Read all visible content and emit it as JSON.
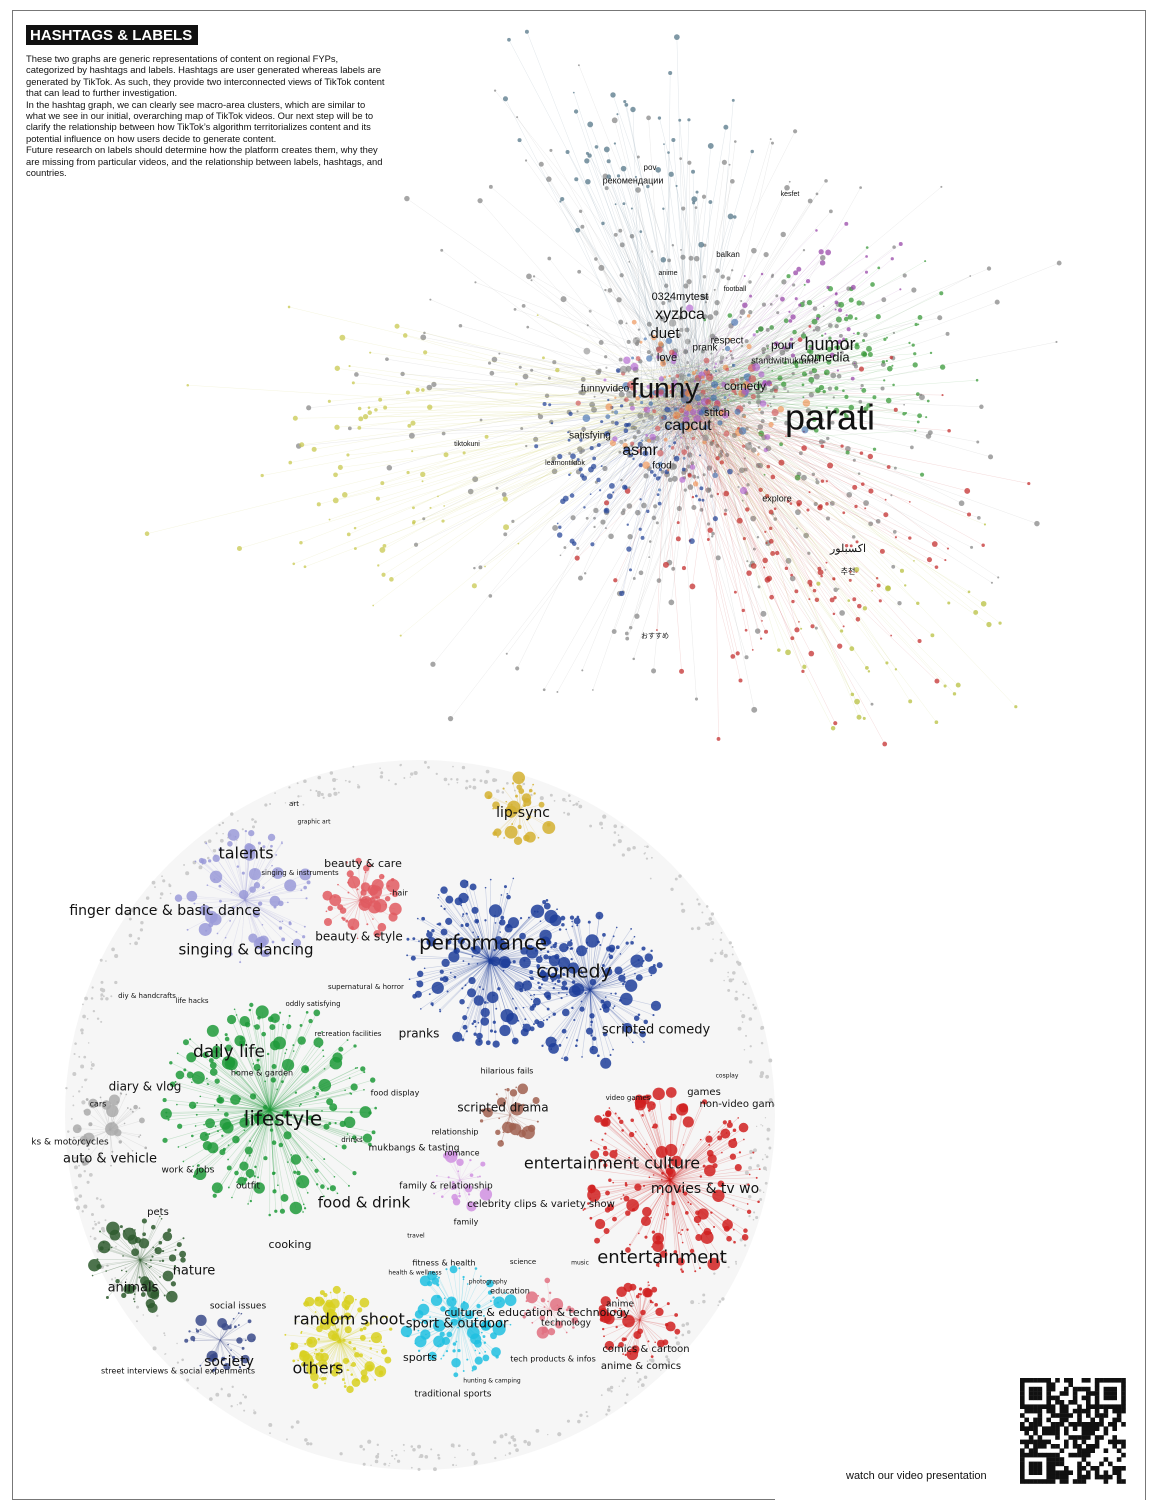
{
  "header": {
    "title": "HASHTAGS & LABELS",
    "paragraphs": [
      "These two graphs are generic representations of content on regional FYPs, categorized by hashtags and labels. Hashtags are user generated whereas labels are generated by TikTok. As such, they provide two interconnected views of TikTok content that can lead to further investigation.",
      "In the hashtag graph, we can clearly see macro-area clusters, which are similar to what we see in our initial, overarching map of TikTok videos. Our next step will be to clarify the relationship between how TikTok’s algorithm territorializes content and its potential influence on how users decide to generate content.",
      "Future research on labels should determine how the platform creates them, why they are missing from particular videos, and the relationship between labels, hashtags, and countries."
    ]
  },
  "hashtag_graph": {
    "labels": [
      "parati",
      "funny",
      "humor",
      "comedia",
      "xyzbca",
      "duet",
      "capcut",
      "asmr",
      "comedy",
      "love",
      "stitch",
      "food",
      "pour",
      "explore",
      "0324mytest",
      "respect",
      "standwithukraine",
      "satisfying",
      "funnyvideo",
      "рекомендации",
      "pov",
      "balkan",
      "kesfet",
      "tiktokuni",
      "learnontiktok",
      "おすすめ",
      "اكسبلور",
      "추천",
      "prank",
      "football",
      "anime"
    ]
  },
  "label_graph": {
    "labels": [
      "lip-sync",
      "talents",
      "finger dance & basic dance",
      "singing & dancing",
      "beauty & care",
      "beauty & style",
      "hair",
      "art",
      "performance",
      "comedy",
      "pranks",
      "scripted comedy",
      "daily life",
      "diary & vlog",
      "lifestyle",
      "home & garden",
      "food display",
      "mukbangs & tasting",
      "drinks",
      "food & drink",
      "cooking",
      "work & jobs",
      "outfit",
      "cars",
      "ks & motorcycles",
      "auto & vehicle",
      "pets",
      "nature",
      "animals",
      "scripted drama",
      "relationship",
      "romance",
      "family & relationship",
      "family",
      "celebrity clips & variety show",
      "entertainment culture",
      "movies & tv wo",
      "games",
      "non-video game",
      "entertainment",
      "video games",
      "hilarious fails",
      "social issues",
      "society",
      "street interviews & social experiments",
      "random shoot",
      "others",
      "fitness & health",
      "culture & education & technology",
      "sport & outdoor",
      "sports",
      "traditional sports",
      "tech products & infos",
      "technology",
      "education",
      "science",
      "anime",
      "comics & cartoon",
      "anime & comics",
      "supernatural & horror",
      "recreation facilities",
      "diy & handcrafts",
      "life hacks",
      "oddly satisfying",
      "graphic art",
      "singing & instruments",
      "cosplay",
      "music",
      "travel",
      "photography",
      "health & wellness",
      "hunting & camping"
    ]
  },
  "footer": {
    "qr_caption": "watch our video presentation"
  }
}
